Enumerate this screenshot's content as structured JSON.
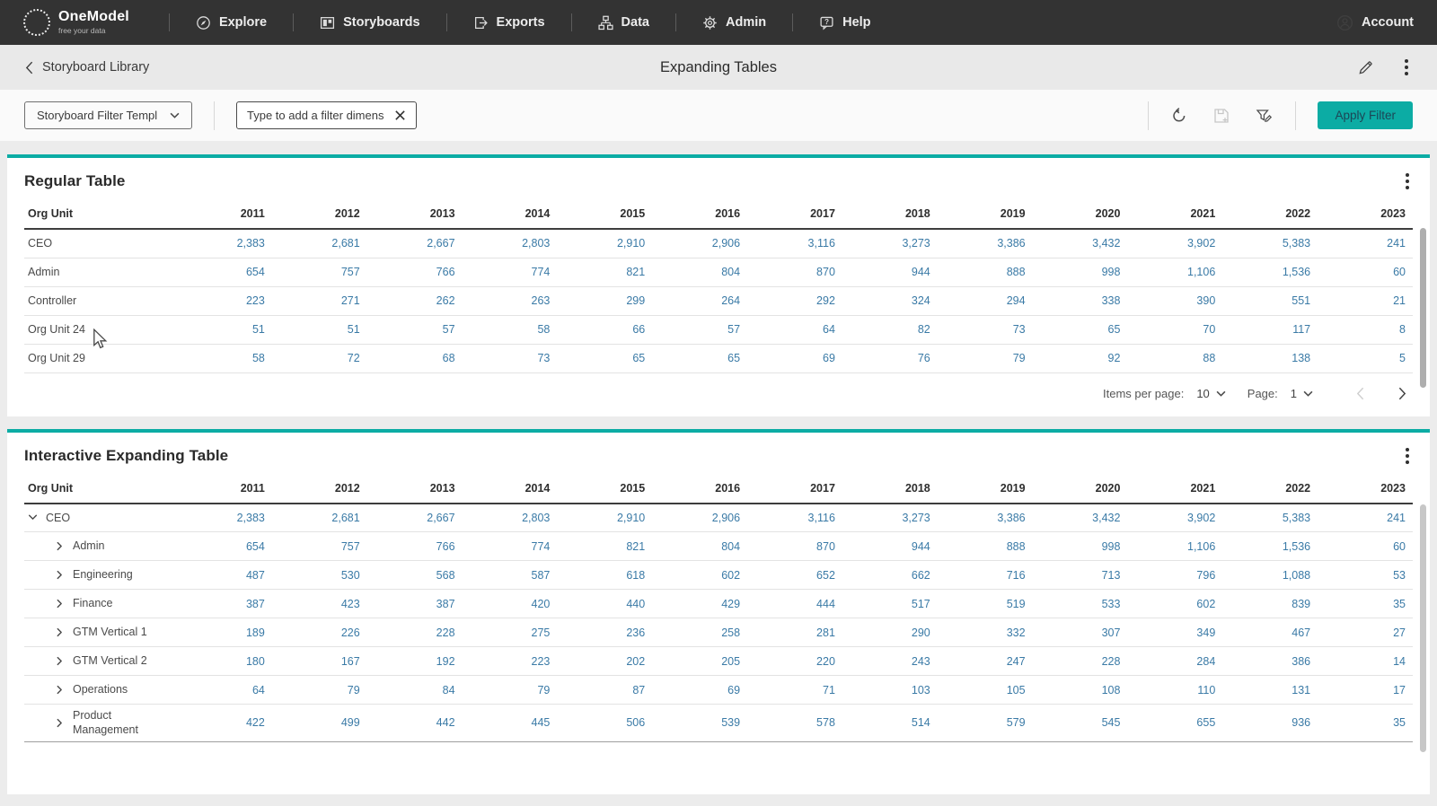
{
  "colors": {
    "accent": "#0caca4",
    "button_text": "#1c4656",
    "number_blue": "#3a7aa6",
    "nav_bg": "#333333"
  },
  "nav": {
    "brand_name": "OneModel",
    "brand_tagline": "free your data",
    "items": [
      {
        "label": "Explore",
        "icon": "explore"
      },
      {
        "label": "Storyboards",
        "icon": "storyboards"
      },
      {
        "label": "Exports",
        "icon": "exports"
      },
      {
        "label": "Data",
        "icon": "data"
      },
      {
        "label": "Admin",
        "icon": "admin"
      },
      {
        "label": "Help",
        "icon": "help"
      }
    ],
    "account_label": "Account"
  },
  "header": {
    "back_label": "Storyboard Library",
    "title": "Expanding Tables"
  },
  "filter_bar": {
    "template_dropdown_value": "Storyboard Filter Templ",
    "dimension_input_placeholder": "Type to add a filter dimens",
    "apply_button_label": "Apply Filter"
  },
  "regular_table": {
    "title": "Regular Table",
    "columns": [
      "Org Unit",
      "2011",
      "2012",
      "2013",
      "2014",
      "2015",
      "2016",
      "2017",
      "2018",
      "2019",
      "2020",
      "2021",
      "2022",
      "2023"
    ],
    "rows": [
      {
        "label": "CEO",
        "values": [
          "2,383",
          "2,681",
          "2,667",
          "2,803",
          "2,910",
          "2,906",
          "3,116",
          "3,273",
          "3,386",
          "3,432",
          "3,902",
          "5,383",
          "241"
        ]
      },
      {
        "label": "Admin",
        "values": [
          "654",
          "757",
          "766",
          "774",
          "821",
          "804",
          "870",
          "944",
          "888",
          "998",
          "1,106",
          "1,536",
          "60"
        ]
      },
      {
        "label": "Controller",
        "values": [
          "223",
          "271",
          "262",
          "263",
          "299",
          "264",
          "292",
          "324",
          "294",
          "338",
          "390",
          "551",
          "21"
        ]
      },
      {
        "label": "Org Unit 24",
        "values": [
          "51",
          "51",
          "57",
          "58",
          "66",
          "57",
          "64",
          "82",
          "73",
          "65",
          "70",
          "117",
          "8"
        ]
      },
      {
        "label": "Org Unit 29",
        "values": [
          "58",
          "72",
          "68",
          "73",
          "65",
          "65",
          "69",
          "76",
          "79",
          "92",
          "88",
          "138",
          "5"
        ]
      }
    ],
    "pagination": {
      "items_per_page_label": "Items per page:",
      "items_per_page_value": "10",
      "page_label": "Page:",
      "page_value": "1"
    }
  },
  "expanding_table": {
    "title": "Interactive Expanding Table",
    "columns": [
      "Org Unit",
      "2011",
      "2012",
      "2013",
      "2014",
      "2015",
      "2016",
      "2017",
      "2018",
      "2019",
      "2020",
      "2021",
      "2022",
      "2023"
    ],
    "rows": [
      {
        "label": "CEO",
        "level": 0,
        "expanded": true,
        "values": [
          "2,383",
          "2,681",
          "2,667",
          "2,803",
          "2,910",
          "2,906",
          "3,116",
          "3,273",
          "3,386",
          "3,432",
          "3,902",
          "5,383",
          "241"
        ]
      },
      {
        "label": "Admin",
        "level": 1,
        "expanded": false,
        "values": [
          "654",
          "757",
          "766",
          "774",
          "821",
          "804",
          "870",
          "944",
          "888",
          "998",
          "1,106",
          "1,536",
          "60"
        ]
      },
      {
        "label": "Engineering",
        "level": 1,
        "expanded": false,
        "values": [
          "487",
          "530",
          "568",
          "587",
          "618",
          "602",
          "652",
          "662",
          "716",
          "713",
          "796",
          "1,088",
          "53"
        ]
      },
      {
        "label": "Finance",
        "level": 1,
        "expanded": false,
        "values": [
          "387",
          "423",
          "387",
          "420",
          "440",
          "429",
          "444",
          "517",
          "519",
          "533",
          "602",
          "839",
          "35"
        ]
      },
      {
        "label": "GTM Vertical 1",
        "level": 1,
        "expanded": false,
        "values": [
          "189",
          "226",
          "228",
          "275",
          "236",
          "258",
          "281",
          "290",
          "332",
          "307",
          "349",
          "467",
          "27"
        ]
      },
      {
        "label": "GTM Vertical 2",
        "level": 1,
        "expanded": false,
        "values": [
          "180",
          "167",
          "192",
          "223",
          "202",
          "205",
          "220",
          "243",
          "247",
          "228",
          "284",
          "386",
          "14"
        ]
      },
      {
        "label": "Operations",
        "level": 1,
        "expanded": false,
        "values": [
          "64",
          "79",
          "84",
          "79",
          "87",
          "69",
          "71",
          "103",
          "105",
          "108",
          "110",
          "131",
          "17"
        ]
      },
      {
        "label": "Product Management",
        "level": 1,
        "expanded": false,
        "values": [
          "422",
          "499",
          "442",
          "445",
          "506",
          "539",
          "578",
          "514",
          "579",
          "545",
          "655",
          "936",
          "35"
        ]
      }
    ]
  }
}
